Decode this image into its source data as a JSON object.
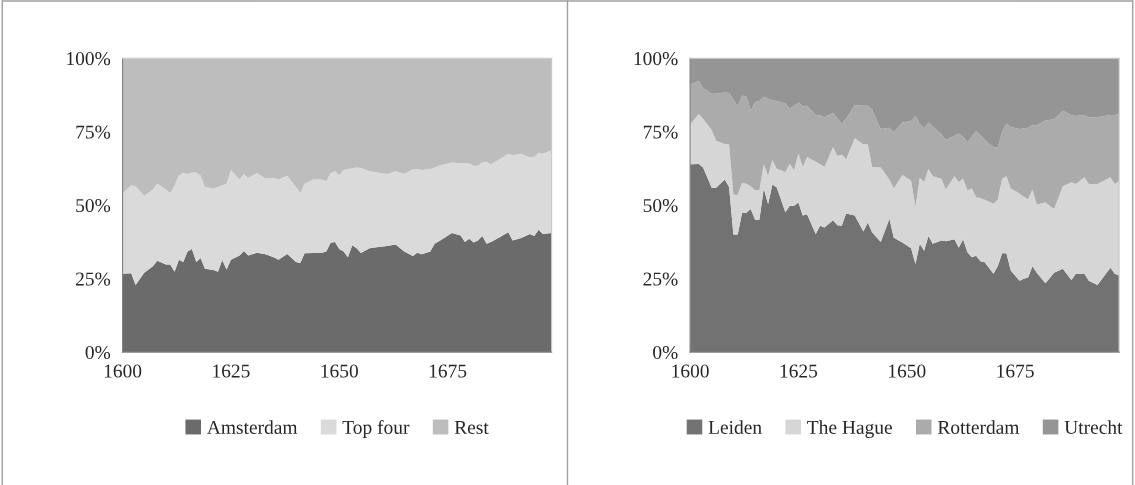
{
  "chart_data": [
    {
      "type": "area",
      "stacked": true,
      "legend": "bottom",
      "grid": false,
      "x": [
        1600,
        1602,
        1603,
        1605,
        1607,
        1608,
        1610,
        1611,
        1612,
        1613,
        1614,
        1615,
        1616,
        1617,
        1618,
        1619,
        1621,
        1622,
        1623,
        1624,
        1625,
        1627,
        1628,
        1629,
        1631,
        1633,
        1635,
        1636,
        1638,
        1640,
        1641,
        1642,
        1644,
        1646,
        1647,
        1648,
        1649,
        1650,
        1651,
        1652,
        1653,
        1654,
        1655,
        1657,
        1659,
        1661,
        1663,
        1665,
        1667,
        1668,
        1669,
        1671,
        1672,
        1673,
        1676,
        1678,
        1679,
        1680,
        1681,
        1682,
        1683,
        1684,
        1685,
        1687,
        1689,
        1690,
        1692,
        1694,
        1695,
        1696,
        1697,
        1699
      ],
      "xlim": [
        1600,
        1699
      ],
      "xticks": [
        1600,
        1625,
        1650,
        1675
      ],
      "ylim": [
        0,
        100
      ],
      "yticks": [
        {
          "value": 0,
          "label": "0%"
        },
        {
          "value": 25,
          "label": "25%"
        },
        {
          "value": 50,
          "label": "50%"
        },
        {
          "value": 75,
          "label": "75%"
        },
        {
          "value": 100,
          "label": "100%"
        }
      ],
      "series": [
        {
          "name": "Amsterdam",
          "color": "#6b6b6b",
          "values": [
            26.7,
            26.8,
            22.8,
            27.0,
            29.2,
            31.1,
            29.8,
            29.8,
            27.3,
            31.4,
            30.7,
            34.2,
            35.1,
            30.7,
            32.0,
            28.4,
            27.9,
            27.3,
            31.3,
            28.1,
            31.4,
            32.9,
            34.4,
            32.9,
            33.8,
            33.3,
            32.2,
            31.4,
            33.4,
            30.7,
            30.3,
            33.6,
            33.7,
            33.8,
            34.2,
            37.2,
            37.5,
            35.1,
            34.2,
            32.3,
            36.4,
            35.3,
            33.7,
            35.3,
            35.8,
            36.1,
            36.6,
            34.2,
            32.7,
            33.8,
            33.3,
            34.2,
            36.9,
            37.7,
            40.5,
            39.7,
            37.5,
            38.6,
            37.3,
            38.0,
            39.5,
            36.9,
            37.5,
            39.1,
            40.8,
            38.0,
            38.8,
            40.2,
            39.5,
            41.6,
            40.2,
            40.5
          ]
        },
        {
          "name": "Top four",
          "color": "#dadada",
          "values": [
            27.3,
            30.0,
            33.6,
            26.1,
            26.1,
            26.2,
            25.5,
            24.3,
            29.4,
            28.7,
            30.3,
            26.4,
            26.0,
            30.4,
            28.1,
            27.8,
            27.8,
            28.9,
            25.5,
            29.2,
            30.6,
            25.8,
            26.2,
            26.3,
            27.1,
            25.7,
            27.1,
            27.3,
            26.6,
            25.5,
            23.7,
            23.7,
            25.0,
            24.9,
            23.9,
            23.7,
            24.0,
            25.0,
            27.8,
            30.0,
            26.1,
            27.5,
            28.9,
            26.2,
            25.2,
            24.5,
            24.9,
            26.4,
            29.5,
            28.5,
            28.7,
            28.1,
            25.9,
            25.7,
            24.0,
            24.6,
            26.7,
            25.6,
            26.1,
            25.4,
            25.0,
            27.9,
            26.4,
            26.5,
            26.7,
            29.0,
            28.7,
            26.0,
            26.9,
            26.2,
            27.3,
            28.2
          ]
        },
        {
          "name": "Rest",
          "color": "#bdbdbd",
          "values": [
            46.0,
            43.2,
            43.6,
            46.9,
            44.7,
            42.7,
            44.7,
            45.9,
            43.3,
            39.9,
            39.0,
            39.4,
            38.9,
            38.9,
            39.9,
            43.8,
            44.3,
            43.8,
            43.2,
            42.7,
            38.0,
            41.3,
            39.4,
            40.8,
            39.1,
            41.0,
            40.7,
            41.3,
            40.0,
            43.8,
            46.0,
            42.7,
            41.3,
            41.3,
            41.9,
            39.1,
            38.5,
            39.9,
            38.0,
            37.7,
            37.5,
            37.2,
            37.4,
            38.5,
            39.0,
            39.4,
            38.5,
            39.4,
            37.8,
            37.7,
            38.0,
            37.7,
            37.2,
            36.6,
            35.5,
            35.7,
            35.8,
            35.8,
            36.6,
            36.6,
            35.5,
            35.2,
            36.1,
            34.4,
            32.5,
            33.0,
            32.5,
            33.8,
            33.6,
            32.2,
            32.5,
            31.3
          ]
        }
      ]
    },
    {
      "type": "area",
      "stacked": true,
      "legend": "bottom",
      "grid": false,
      "x": [
        1600,
        1602,
        1603,
        1605,
        1606,
        1608,
        1609,
        1610,
        1611,
        1612,
        1613,
        1614,
        1615,
        1616,
        1617,
        1618,
        1619,
        1620,
        1622,
        1623,
        1624,
        1625,
        1626,
        1627,
        1629,
        1630,
        1631,
        1633,
        1634,
        1635,
        1636,
        1638,
        1640,
        1641,
        1642,
        1644,
        1646,
        1647,
        1649,
        1651,
        1652,
        1653,
        1654,
        1655,
        1656,
        1658,
        1659,
        1661,
        1662,
        1663,
        1664,
        1665,
        1666,
        1667,
        1668,
        1670,
        1671,
        1672,
        1673,
        1674,
        1676,
        1677,
        1678,
        1679,
        1680,
        1682,
        1684,
        1686,
        1688,
        1689,
        1691,
        1692,
        1694,
        1697,
        1698,
        1699
      ],
      "xlim": [
        1600,
        1699
      ],
      "xticks": [
        1600,
        1625,
        1650,
        1675
      ],
      "ylim": [
        0,
        100
      ],
      "yticks": [
        {
          "value": 0,
          "label": "0%"
        },
        {
          "value": 25,
          "label": "25%"
        },
        {
          "value": 50,
          "label": "50%"
        },
        {
          "value": 75,
          "label": "75%"
        },
        {
          "value": 100,
          "label": "100%"
        }
      ],
      "series": [
        {
          "name": "Leiden",
          "color": "#727272",
          "values": [
            63.9,
            64.0,
            62.8,
            55.9,
            55.9,
            58.7,
            56.2,
            40.0,
            40.0,
            47.4,
            47.4,
            48.7,
            45.0,
            45.0,
            55.7,
            50.4,
            57.0,
            56.0,
            47.6,
            49.8,
            49.8,
            50.9,
            46.5,
            46.9,
            40.2,
            43.0,
            42.4,
            44.9,
            43.2,
            43.0,
            47.2,
            46.5,
            41.0,
            44.1,
            40.8,
            37.5,
            45.4,
            38.9,
            37.3,
            35.3,
            30.0,
            36.9,
            34.5,
            39.5,
            36.9,
            38.0,
            37.7,
            38.4,
            35.5,
            38.4,
            34.0,
            32.3,
            32.8,
            30.9,
            30.6,
            26.7,
            29.2,
            33.6,
            33.6,
            27.8,
            24.3,
            25.0,
            25.4,
            29.2,
            27.0,
            23.4,
            27.0,
            28.4,
            24.5,
            26.7,
            26.7,
            24.3,
            22.8,
            28.7,
            26.7,
            26.1
          ]
        },
        {
          "name": "The Hague",
          "color": "#d6d6d6",
          "values": [
            13.5,
            17.0,
            16.6,
            19.6,
            16.0,
            12.1,
            14.4,
            13.5,
            13.5,
            10.2,
            9.9,
            7.7,
            10.1,
            10.1,
            8.2,
            9.6,
            8.4,
            6.4,
            13.7,
            14.3,
            12.1,
            16.7,
            16.5,
            19.5,
            24.6,
            20.9,
            20.6,
            24.8,
            23.5,
            24.2,
            18.4,
            26.3,
            29.6,
            26.7,
            22.2,
            25.3,
            13.3,
            16.8,
            23.0,
            23.1,
            19.4,
            22.4,
            23.4,
            22.8,
            22.9,
            21.0,
            17.6,
            21.4,
            22.4,
            20.6,
            21.1,
            23.4,
            19.9,
            21.5,
            21.2,
            23.8,
            22.6,
            25.4,
            26.2,
            27.9,
            29.7,
            27.9,
            26.6,
            26.1,
            23.2,
            27.5,
            21.7,
            28.0,
            33.3,
            30.5,
            32.8,
            32.9,
            34.4,
            30.8,
            30.5,
            32.1
          ]
        },
        {
          "name": "Rotterdam",
          "color": "#ababab",
          "values": [
            13.6,
            11.3,
            10.5,
            12.4,
            16.0,
            17.5,
            17.6,
            32.5,
            30.1,
            29.7,
            29.6,
            25.7,
            30.0,
            30.3,
            23.0,
            26.2,
            20.3,
            23.0,
            23.3,
            18.8,
            21.9,
            17.3,
            20.6,
            17.4,
            15.9,
            16.6,
            16.9,
            11.7,
            12.7,
            10.5,
            13.8,
            11.2,
            13.2,
            13.0,
            19.5,
            13.1,
            17.6,
            19.0,
            17.8,
            20.2,
            30.9,
            18.3,
            18.2,
            15.8,
            17.0,
            15.1,
            16.9,
            13.8,
            16.5,
            14.3,
            16.3,
            17.6,
            22.5,
            21.5,
            20.4,
            19.2,
            17.9,
            16.0,
            18.0,
            20.9,
            21.9,
            23.2,
            24.3,
            21.9,
            27.0,
            27.9,
            30.5,
            25.7,
            22.9,
            23.1,
            21.2,
            22.7,
            22.7,
            21.2,
            23.5,
            22.8
          ]
        },
        {
          "name": "Utrecht",
          "color": "#959595",
          "values": [
            9.0,
            7.7,
            10.1,
            12.1,
            12.1,
            11.7,
            11.8,
            14.0,
            16.4,
            12.7,
            13.1,
            17.9,
            14.9,
            14.6,
            13.1,
            13.8,
            14.3,
            14.6,
            15.4,
            17.1,
            16.2,
            15.1,
            16.4,
            16.2,
            19.3,
            19.5,
            20.1,
            18.6,
            20.6,
            22.3,
            20.6,
            16.0,
            16.2,
            16.2,
            17.5,
            24.1,
            23.7,
            25.3,
            21.9,
            21.4,
            19.7,
            22.4,
            23.9,
            21.9,
            23.2,
            25.9,
            27.8,
            26.4,
            25.6,
            26.7,
            28.6,
            26.7,
            24.8,
            26.1,
            27.8,
            30.3,
            30.3,
            25.0,
            22.2,
            23.4,
            24.1,
            23.9,
            23.7,
            22.8,
            22.8,
            21.2,
            20.8,
            17.9,
            19.3,
            19.7,
            19.3,
            20.1,
            20.1,
            19.3,
            19.3,
            19.0
          ]
        }
      ]
    }
  ]
}
